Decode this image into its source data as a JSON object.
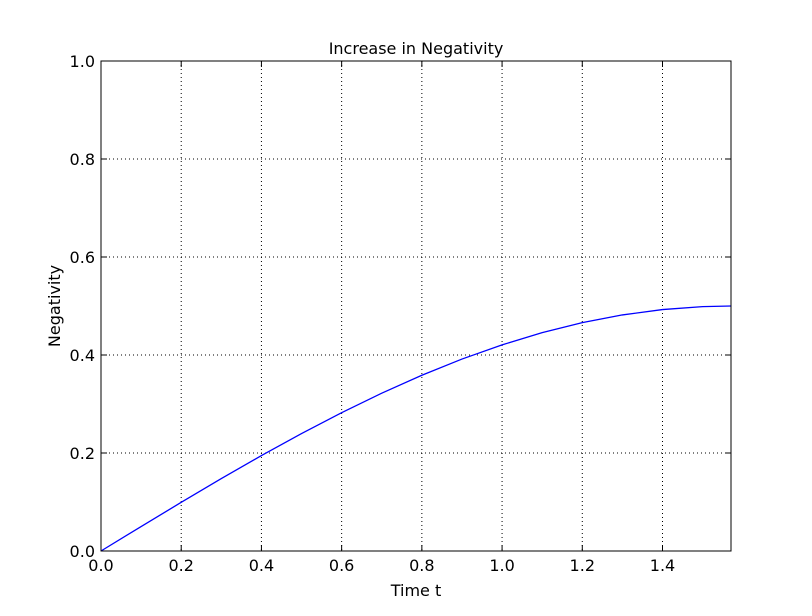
{
  "chart_data": {
    "type": "line",
    "title": "Increase in Negativity",
    "xlabel": "Time t",
    "ylabel": "Negativity",
    "xlim": [
      0,
      1.5708
    ],
    "ylim": [
      0,
      1
    ],
    "xticks": [
      0,
      0.2,
      0.4,
      0.6,
      0.8,
      1.0,
      1.2,
      1.4
    ],
    "xtick_labels": [
      "0.0",
      "0.2",
      "0.4",
      "0.6",
      "0.8",
      "1.0",
      "1.2",
      "1.4"
    ],
    "yticks": [
      0,
      0.2,
      0.4,
      0.6,
      0.8,
      1.0
    ],
    "ytick_labels": [
      "0.0",
      "0.2",
      "0.4",
      "0.6",
      "0.8",
      "1.0"
    ],
    "grid": true,
    "series": [
      {
        "color": "#0000ff",
        "x": [
          0,
          0.1,
          0.2,
          0.3,
          0.4,
          0.5,
          0.6,
          0.7,
          0.8,
          0.9,
          1.0,
          1.1,
          1.2,
          1.3,
          1.4,
          1.5,
          1.5708
        ],
        "y": [
          0,
          0.0499,
          0.0993,
          0.1478,
          0.1947,
          0.2397,
          0.2823,
          0.3221,
          0.3587,
          0.3917,
          0.4207,
          0.4456,
          0.466,
          0.4818,
          0.4927,
          0.4987,
          0.5
        ]
      }
    ]
  }
}
